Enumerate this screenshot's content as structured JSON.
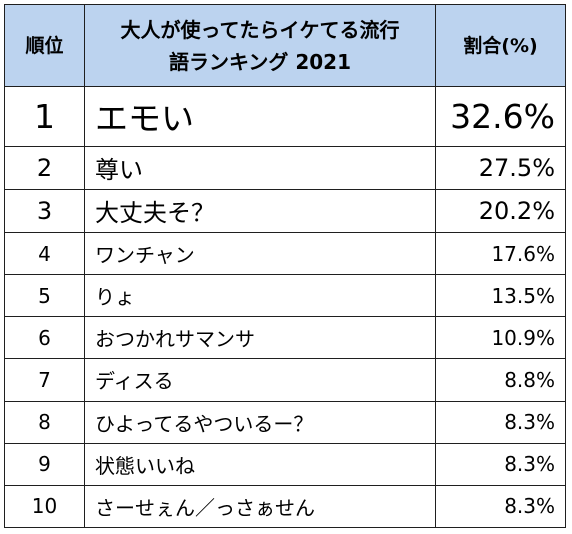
{
  "chart_data": {
    "type": "table",
    "headers": {
      "rank": "順位",
      "word_line1": "大人が使ってたらイケてる流行",
      "word_line2": "語ランキング 2021",
      "share": "割合(%)"
    },
    "rows": [
      {
        "rank": "1",
        "word": "エモい",
        "share": "32.6%",
        "value": 32.6
      },
      {
        "rank": "2",
        "word": "尊い",
        "share": "27.5%",
        "value": 27.5
      },
      {
        "rank": "3",
        "word": "大丈夫そ？",
        "share": "20.2%",
        "value": 20.2
      },
      {
        "rank": "4",
        "word": "ワンチャン",
        "share": "17.6%",
        "value": 17.6
      },
      {
        "rank": "5",
        "word": "りょ",
        "share": "13.5%",
        "value": 13.5
      },
      {
        "rank": "6",
        "word": "おつかれサマンサ",
        "share": "10.9%",
        "value": 10.9
      },
      {
        "rank": "7",
        "word": "ディスる",
        "share": "8.8%",
        "value": 8.8
      },
      {
        "rank": "8",
        "word": "ひよってるやついるー？",
        "share": "8.3%",
        "value": 8.3
      },
      {
        "rank": "9",
        "word": "状態いいね",
        "share": "8.3%",
        "value": 8.3
      },
      {
        "rank": "10",
        "word": "さーせぇん／っさぁせん",
        "share": "8.3%",
        "value": 8.3
      }
    ]
  },
  "colors": {
    "header_background": "#bcd3ef",
    "border": "#1f1f1f",
    "text": "#000000"
  }
}
